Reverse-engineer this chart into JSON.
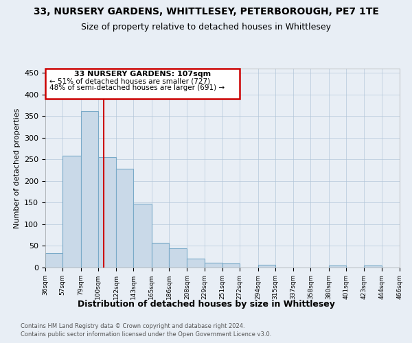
{
  "title": "33, NURSERY GARDENS, WHITTLESEY, PETERBOROUGH, PE7 1TE",
  "subtitle": "Size of property relative to detached houses in Whittlesey",
  "xlabel": "Distribution of detached houses by size in Whittlesey",
  "ylabel": "Number of detached properties",
  "footnote1": "Contains HM Land Registry data © Crown copyright and database right 2024.",
  "footnote2": "Contains public sector information licensed under the Open Government Licence v3.0.",
  "bin_edges": [
    36,
    57,
    79,
    100,
    122,
    143,
    165,
    186,
    208,
    229,
    251,
    272,
    294,
    315,
    337,
    358,
    380,
    401,
    423,
    444,
    466
  ],
  "bar_heights": [
    33,
    258,
    362,
    255,
    228,
    148,
    57,
    45,
    20,
    11,
    10,
    0,
    7,
    0,
    0,
    0,
    5,
    0,
    4,
    0
  ],
  "bar_color": "#c9d9e8",
  "bar_edge_color": "#7aaac8",
  "marker_value": 107,
  "marker_color": "#cc0000",
  "annotation_title": "33 NURSERY GARDENS: 107sqm",
  "annotation_line1": "← 51% of detached houses are smaller (727)",
  "annotation_line2": "48% of semi-detached houses are larger (691) →",
  "annotation_box_color": "#cc0000",
  "ylim": [
    0,
    460
  ],
  "yticks": [
    0,
    50,
    100,
    150,
    200,
    250,
    300,
    350,
    400,
    450
  ],
  "background_color": "#e8eef5",
  "plot_background": "#e8eef5",
  "title_fontsize": 10,
  "subtitle_fontsize": 9
}
